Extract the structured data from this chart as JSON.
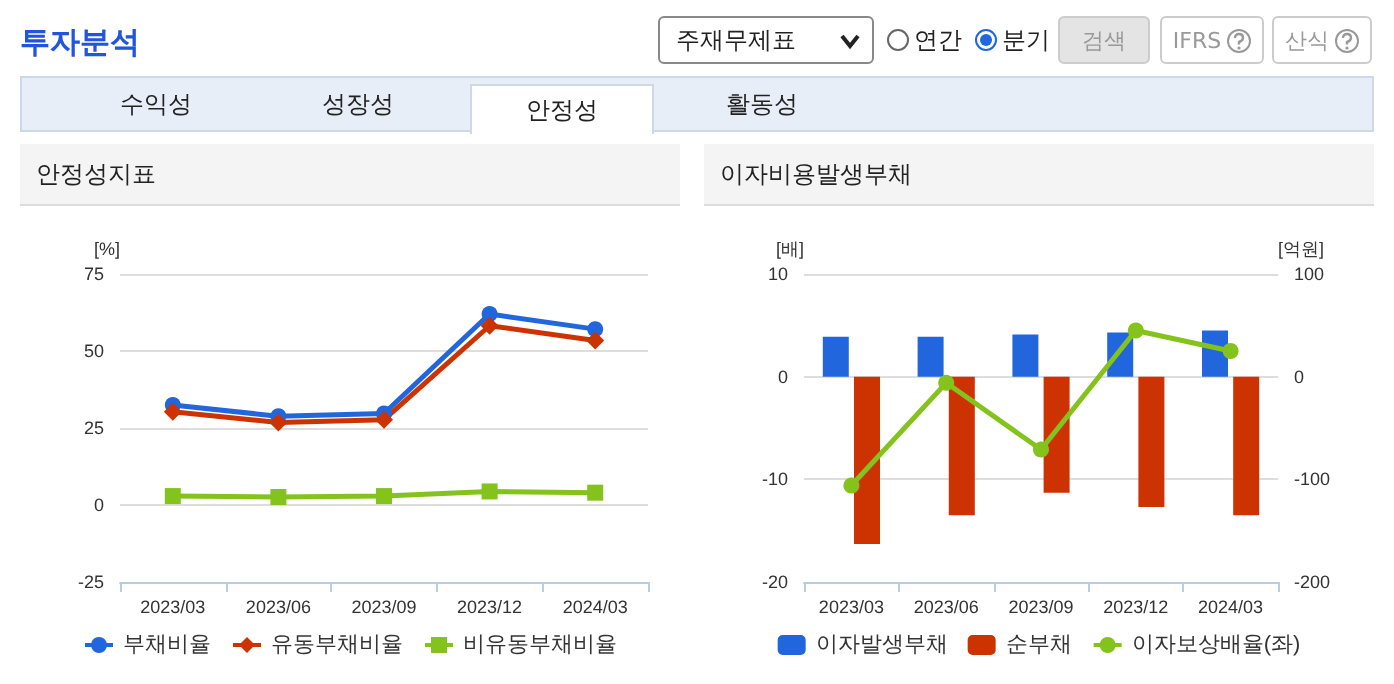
{
  "chart_data": [
    {
      "type": "other",
      "title": "투자분석",
      "annotations": [
        "주재무제표",
        "연간",
        "분기",
        "검색",
        "IFRS",
        "산식",
        "수익성",
        "성장성",
        "안정성",
        "활동성"
      ]
    },
    {
      "type": "line",
      "title": "안정성지표",
      "ylabel": "[%]",
      "categories": [
        "2023/03",
        "2023/06",
        "2023/09",
        "2023/12",
        "2024/03"
      ],
      "series": [
        {
          "name": "부채비율",
          "color": "#2266dd",
          "marker": "circle",
          "values": [
            32.5,
            28.8,
            29.7,
            62,
            57.1
          ]
        },
        {
          "name": "유동부채비율",
          "color": "#cc3300",
          "marker": "diamond",
          "values": [
            30.3,
            26.8,
            27.7,
            58.2,
            53.4
          ]
        },
        {
          "name": "비유동부채비율",
          "color": "#84c31c",
          "marker": "square",
          "values": [
            2.9,
            2.6,
            2.9,
            4.4,
            4.0
          ]
        }
      ],
      "ylim": [
        -25,
        75
      ],
      "yticks": [
        -25,
        0,
        25,
        50,
        75
      ],
      "grid": "y",
      "legend": "bottom"
    },
    {
      "type": "bar",
      "title": "이자비용발생부채",
      "ylabel": "[배]",
      "y2label": "[억원]",
      "categories": [
        "2023/03",
        "2023/06",
        "2023/09",
        "2023/12",
        "2024/03"
      ],
      "series": [
        {
          "name": "이자발생부채",
          "color": "#2266dd",
          "axis": "y2",
          "values": [
            39,
            39,
            41,
            43,
            45
          ]
        },
        {
          "name": "순부채",
          "color": "#cc3300",
          "axis": "y2",
          "values": [
            -163,
            -135,
            -113,
            -127,
            -135
          ]
        },
        {
          "name": "이자보상배율(좌)",
          "type": "line",
          "marker": "circle",
          "color": "#84c31c",
          "axis": "y",
          "values": [
            -10.6,
            -0.6,
            -7.1,
            4.5,
            2.5
          ]
        }
      ],
      "ylim": [
        -20,
        10
      ],
      "yticks": [
        -20,
        -10,
        0,
        10
      ],
      "y2lim": [
        -200,
        100
      ],
      "y2ticks": [
        -200,
        -100,
        0,
        100
      ],
      "grid": "y",
      "legend": "bottom"
    }
  ]
}
